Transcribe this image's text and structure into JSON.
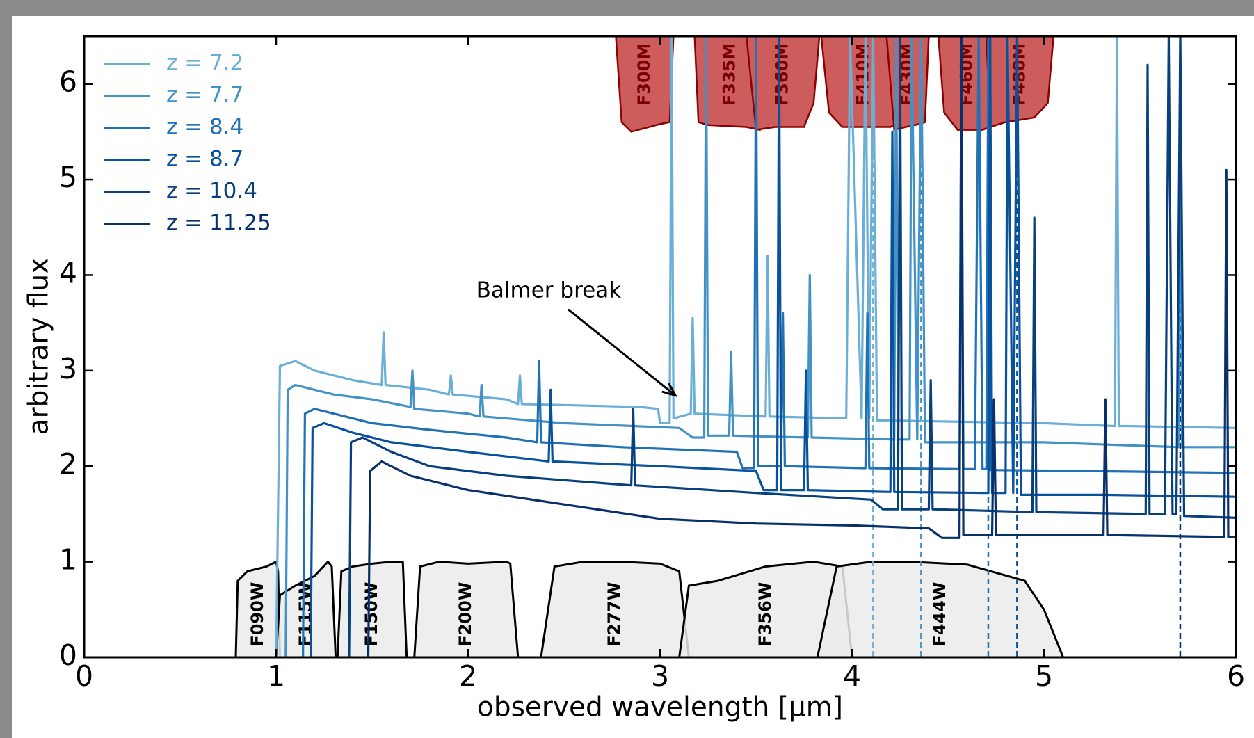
{
  "chart_data": {
    "type": "line",
    "xlabel": "observed wavelength [μm]",
    "ylabel": "arbitrary flux",
    "xlim": [
      0,
      6
    ],
    "ylim": [
      0,
      6.5
    ],
    "xticks": [
      0,
      1,
      2,
      3,
      4,
      5,
      6
    ],
    "yticks": [
      0,
      1,
      2,
      3,
      4,
      5,
      6
    ],
    "grid": false,
    "legend": "upper left",
    "series": [
      {
        "name": "z = 7.2",
        "color": "#6baed6",
        "x": [
          0.99,
          1.0,
          1.02,
          1.1,
          1.2,
          1.3,
          1.4,
          1.55,
          1.56,
          1.57,
          1.8,
          1.9,
          1.91,
          1.92,
          2.2,
          2.26,
          2.27,
          2.28,
          2.9,
          2.99,
          3.0,
          3.05,
          3.06,
          3.07,
          3.16,
          3.17,
          3.18,
          3.55,
          3.56,
          3.57,
          3.97,
          3.99,
          4.05,
          4.07,
          4.09,
          4.11,
          4.13,
          5.0,
          5.37,
          5.38,
          5.39,
          5.43,
          6.0
        ],
        "values": [
          0,
          0,
          3.05,
          3.1,
          3.0,
          2.95,
          2.9,
          2.85,
          3.4,
          2.85,
          2.8,
          2.75,
          2.95,
          2.75,
          2.7,
          2.65,
          2.95,
          2.65,
          2.62,
          2.6,
          2.45,
          2.45,
          6.5,
          2.5,
          2.55,
          3.55,
          2.55,
          2.52,
          4.2,
          2.52,
          2.5,
          6.5,
          2.5,
          6.5,
          2.5,
          6.5,
          2.48,
          2.45,
          2.42,
          6.5,
          2.42,
          2.42,
          2.4
        ]
      },
      {
        "name": "z = 7.7",
        "color": "#4292c6",
        "x": [
          1.05,
          1.06,
          1.1,
          1.2,
          1.3,
          1.5,
          1.7,
          1.71,
          1.72,
          2.0,
          2.06,
          2.07,
          2.08,
          2.5,
          3.1,
          3.17,
          3.23,
          3.24,
          3.25,
          3.36,
          3.37,
          3.38,
          3.77,
          3.78,
          3.79,
          4.22,
          4.23,
          4.24,
          4.3,
          4.31,
          4.34,
          4.36,
          4.38,
          5.0,
          5.7,
          5.71,
          5.72,
          6.0
        ],
        "values": [
          0,
          2.8,
          2.85,
          2.8,
          2.75,
          2.7,
          2.62,
          3.0,
          2.6,
          2.55,
          2.52,
          2.85,
          2.52,
          2.45,
          2.4,
          2.3,
          2.3,
          6.5,
          2.32,
          2.32,
          3.2,
          2.32,
          2.3,
          4.0,
          2.3,
          2.28,
          6.5,
          2.28,
          2.28,
          6.5,
          2.28,
          6.5,
          2.25,
          2.25,
          2.2,
          6.5,
          2.2,
          2.2
        ]
      },
      {
        "name": "z = 8.4",
        "color": "#2171b5",
        "x": [
          1.14,
          1.15,
          1.2,
          1.3,
          1.5,
          1.8,
          2.2,
          2.36,
          2.37,
          2.38,
          2.8,
          3.4,
          3.43,
          3.49,
          3.5,
          3.51,
          3.63,
          3.64,
          3.65,
          4.07,
          4.08,
          4.09,
          4.56,
          4.57,
          4.58,
          4.64,
          4.66,
          4.68,
          4.7,
          4.71,
          4.72,
          5.2,
          6.0
        ],
        "values": [
          0,
          2.55,
          2.6,
          2.55,
          2.45,
          2.38,
          2.3,
          2.25,
          3.1,
          2.25,
          2.2,
          2.15,
          1.98,
          1.98,
          6.5,
          2.0,
          2.0,
          3.6,
          2.0,
          1.98,
          3.6,
          1.98,
          1.97,
          6.5,
          1.97,
          1.97,
          6.5,
          1.97,
          1.97,
          6.5,
          1.96,
          1.95,
          1.93
        ]
      },
      {
        "name": "z = 8.7",
        "color": "#08519c",
        "x": [
          1.18,
          1.19,
          1.25,
          1.4,
          1.6,
          2.0,
          2.42,
          2.43,
          2.44,
          3.0,
          3.5,
          3.54,
          3.61,
          3.62,
          3.63,
          3.75,
          3.76,
          3.77,
          4.2,
          4.21,
          4.22,
          4.71,
          4.72,
          4.73,
          4.8,
          4.81,
          4.84,
          4.86,
          4.88,
          5.3,
          6.0
        ],
        "values": [
          0,
          2.4,
          2.45,
          2.35,
          2.25,
          2.15,
          2.05,
          2.8,
          2.05,
          2.0,
          1.95,
          1.75,
          1.75,
          6.5,
          1.75,
          1.75,
          3.0,
          1.75,
          1.73,
          5.5,
          1.73,
          1.72,
          6.5,
          1.72,
          1.72,
          6.5,
          1.72,
          6.5,
          1.7,
          1.7,
          1.68
        ]
      },
      {
        "name": "z = 10.4",
        "color": "#08407e",
        "x": [
          1.38,
          1.39,
          1.45,
          1.6,
          1.8,
          2.2,
          2.85,
          2.86,
          2.87,
          3.5,
          4.1,
          4.16,
          4.24,
          4.25,
          4.26,
          4.4,
          4.41,
          4.42,
          4.94,
          4.95,
          4.96,
          5.53,
          5.54,
          5.55,
          5.63,
          5.65,
          5.67,
          5.69,
          5.71,
          5.73,
          6.0
        ],
        "values": [
          0,
          2.25,
          2.3,
          2.15,
          2.0,
          1.9,
          1.8,
          2.6,
          1.8,
          1.72,
          1.65,
          1.55,
          1.55,
          6.5,
          1.55,
          1.55,
          2.9,
          1.55,
          1.52,
          4.6,
          1.52,
          1.5,
          6.2,
          1.5,
          1.5,
          6.5,
          1.5,
          1.5,
          6.5,
          1.48,
          1.46
        ]
      },
      {
        "name": "z = 11.25",
        "color": "#08306b",
        "x": [
          1.48,
          1.49,
          1.55,
          1.7,
          2.0,
          2.5,
          3.0,
          3.5,
          4.0,
          4.4,
          4.47,
          4.56,
          4.57,
          4.58,
          4.73,
          4.74,
          4.75,
          5.31,
          5.32,
          5.33,
          5.94,
          5.95,
          5.96,
          6.0
        ],
        "values": [
          0,
          1.95,
          2.05,
          1.9,
          1.75,
          1.6,
          1.45,
          1.4,
          1.38,
          1.35,
          1.25,
          1.25,
          6.5,
          1.28,
          1.28,
          2.7,
          1.28,
          1.28,
          2.7,
          1.28,
          1.26,
          5.1,
          1.26,
          1.26
        ]
      }
    ],
    "broad_filters": [
      {
        "name": "F090W",
        "x": [
          0.79,
          0.8,
          0.85,
          0.95,
          1.0,
          1.01,
          1.02
        ],
        "values": [
          0,
          0.8,
          0.9,
          0.95,
          1.0,
          0.9,
          0
        ]
      },
      {
        "name": "F115W",
        "x": [
          1.0,
          1.02,
          1.1,
          1.2,
          1.27,
          1.29,
          1.31
        ],
        "values": [
          0,
          0.65,
          0.75,
          0.85,
          1.0,
          0.95,
          0
        ]
      },
      {
        "name": "F150W",
        "x": [
          1.32,
          1.34,
          1.4,
          1.5,
          1.6,
          1.66,
          1.68
        ],
        "values": [
          0,
          0.9,
          0.95,
          0.98,
          1.0,
          1.0,
          0
        ]
      },
      {
        "name": "F200W",
        "x": [
          1.72,
          1.75,
          1.85,
          2.0,
          2.2,
          2.22,
          2.26
        ],
        "values": [
          0,
          0.95,
          1.0,
          0.98,
          1.0,
          0.98,
          0
        ]
      },
      {
        "name": "F277W",
        "x": [
          2.38,
          2.45,
          2.6,
          2.8,
          3.0,
          3.1,
          3.15
        ],
        "values": [
          0,
          0.95,
          1.0,
          1.0,
          0.98,
          0.9,
          0
        ]
      },
      {
        "name": "F356W",
        "x": [
          3.1,
          3.15,
          3.3,
          3.55,
          3.8,
          3.95,
          4.0
        ],
        "values": [
          0,
          0.75,
          0.8,
          0.95,
          1.0,
          0.95,
          0
        ]
      },
      {
        "name": "F444W",
        "x": [
          3.82,
          3.92,
          4.1,
          4.3,
          4.6,
          4.9,
          5.0,
          5.1
        ],
        "values": [
          0,
          0.95,
          1.0,
          1.0,
          0.97,
          0.8,
          0.5,
          0
        ]
      }
    ],
    "broad_filter_color": "#ebebeb",
    "medium_filters": [
      {
        "name": "F300M",
        "x": [
          2.77,
          2.8,
          2.85,
          3.0,
          3.05,
          3.07
        ],
        "values": [
          6.5,
          5.6,
          5.5,
          5.58,
          5.6,
          6.5
        ]
      },
      {
        "name": "F335M",
        "x": [
          3.18,
          3.2,
          3.25,
          3.45,
          3.52,
          3.55
        ],
        "values": [
          6.5,
          5.6,
          5.57,
          5.55,
          5.52,
          6.5
        ]
      },
      {
        "name": "F360M",
        "x": [
          3.45,
          3.5,
          3.6,
          3.75,
          3.8,
          3.83
        ],
        "values": [
          6.5,
          5.52,
          5.55,
          5.55,
          5.8,
          6.5
        ]
      },
      {
        "name": "F410M",
        "x": [
          3.84,
          3.88,
          3.95,
          4.2,
          4.25,
          4.28
        ],
        "values": [
          6.5,
          5.7,
          5.55,
          5.55,
          5.6,
          6.5
        ]
      },
      {
        "name": "F430M",
        "x": [
          4.18,
          4.22,
          4.28,
          4.35,
          4.38,
          4.4
        ],
        "values": [
          6.5,
          5.52,
          5.55,
          5.58,
          5.6,
          6.5
        ]
      },
      {
        "name": "F460M",
        "x": [
          4.45,
          4.48,
          4.55,
          4.68,
          4.72,
          4.75
        ],
        "values": [
          6.5,
          5.7,
          5.52,
          5.52,
          5.55,
          6.5
        ]
      },
      {
        "name": "F480M",
        "x": [
          4.7,
          4.72,
          4.8,
          4.95,
          5.02,
          5.05
        ],
        "values": [
          6.5,
          5.55,
          5.6,
          5.65,
          5.8,
          6.5
        ]
      }
    ],
    "medium_filter_color": "#cd5c5c",
    "vlines": [
      {
        "x": 4.11,
        "color": "#6baed6"
      },
      {
        "x": 4.36,
        "color": "#4292c6"
      },
      {
        "x": 4.71,
        "color": "#2171b5"
      },
      {
        "x": 4.86,
        "color": "#08519c"
      },
      {
        "x": 5.71,
        "color": "#08306b"
      }
    ],
    "annotation": {
      "text": "Balmer break",
      "xytext": [
        2.42,
        3.83
      ],
      "xy": [
        3.08,
        2.74
      ]
    }
  }
}
